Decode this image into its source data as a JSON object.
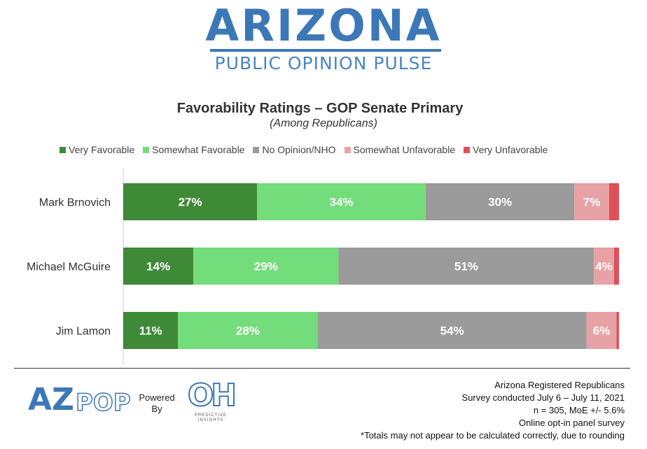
{
  "header": {
    "logo_title": "ARIZONA",
    "logo_subtitle": "PUBLIC OPINION PULSE"
  },
  "chart_data": {
    "type": "bar",
    "orientation": "horizontal-stacked-100",
    "title": "Favorability Ratings  – GOP Senate Primary",
    "subtitle": "(Among Republicans)",
    "categories": [
      "Mark Brnovich",
      "Michael McGuire",
      "Jim Lamon"
    ],
    "series": [
      {
        "name": "Very Favorable",
        "color": "#3f8a37",
        "values": [
          27,
          14,
          11
        ],
        "labels": [
          "27%",
          "14%",
          "11%"
        ]
      },
      {
        "name": "Somewhat Favorable",
        "color": "#73dc7b",
        "values": [
          34,
          29,
          28
        ],
        "labels": [
          "34%",
          "29%",
          "28%"
        ]
      },
      {
        "name": "No Opinion/NHO",
        "color": "#9b9b9b",
        "values": [
          30,
          51,
          54
        ],
        "labels": [
          "30%",
          "51%",
          "54%"
        ]
      },
      {
        "name": "Somewhat Unfavorable",
        "color": "#e8a1a4",
        "values": [
          7,
          4,
          6
        ],
        "labels": [
          "7%",
          "4%",
          "6%"
        ]
      },
      {
        "name": "Very Unfavorable",
        "color": "#df5059",
        "values": [
          2,
          1,
          0.5
        ],
        "labels": [
          "",
          "",
          ""
        ]
      }
    ],
    "legend_position": "top",
    "grid": false
  },
  "footer": {
    "azpop_logo": {
      "az": "AZ",
      "pop": "POP"
    },
    "powered_by": [
      "Powered",
      "By"
    ],
    "oh_logo": {
      "mark": "OH",
      "name": "PREDICTIVE INSIGHTS"
    },
    "notes": [
      "Arizona Registered Republicans",
      "Survey conducted July 6 – July 11, 2021",
      "n = 305, MoE +/- 5.6%",
      "Online opt-in panel survey",
      "*Totals may not appear to be calculated correctly, due to rounding"
    ]
  }
}
